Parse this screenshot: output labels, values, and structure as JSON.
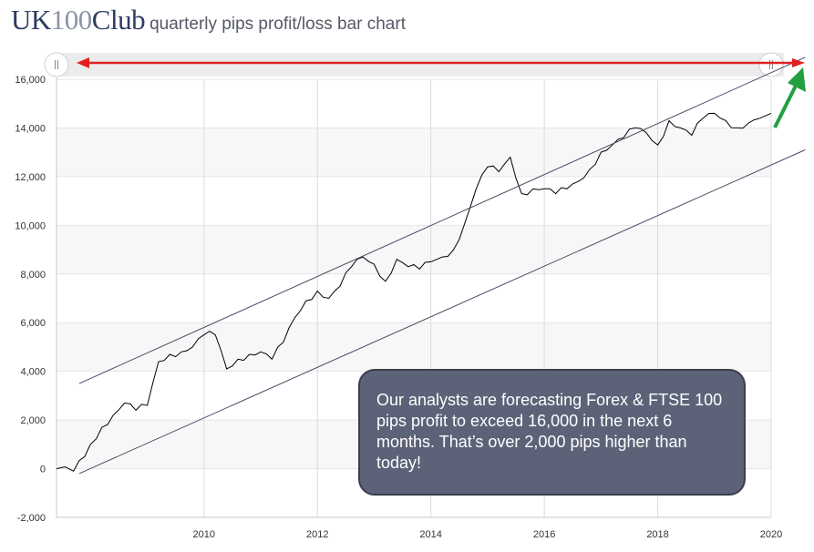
{
  "header": {
    "logo_part1": "UK",
    "logo_part2": "100",
    "logo_part3": "Club",
    "subtitle": "quarterly pips profit/loss bar chart"
  },
  "callout": {
    "text": "Our analysts are forecasting Forex & FTSE 100 pips profit to exceed 16,000 in the next 6 months. That’s over 2,000 pips higher than today!"
  },
  "navigator": {
    "left_handle_icon": "drag-handle-icon",
    "right_handle_icon": "drag-handle-icon"
  },
  "colors": {
    "line": "#000000",
    "channel": "#4a4a6a",
    "red_arrow": "#e02020",
    "green_arrow": "#22a040",
    "band": "#f7f7f7",
    "callout_bg": "#5c6378"
  },
  "chart_data": {
    "type": "line",
    "title": "",
    "xlabel": "",
    "ylabel": "",
    "xlim": [
      2007.4,
      2020.0
    ],
    "ylim": [
      -2000,
      16000
    ],
    "x_ticks": [
      2010,
      2012,
      2014,
      2016,
      2018,
      2020
    ],
    "x_tick_labels": [
      "2010",
      "2012",
      "2014",
      "2016",
      "2018",
      "2020"
    ],
    "y_ticks": [
      -2000,
      0,
      2000,
      4000,
      6000,
      8000,
      10000,
      12000,
      14000,
      16000
    ],
    "y_tick_labels": [
      "-2,000",
      "0",
      "2,000",
      "4,000",
      "6,000",
      "8,000",
      "10,000",
      "12,000",
      "14,000",
      "16,000"
    ],
    "grid": true,
    "series": [
      {
        "x": [
          2007.4,
          2007.7,
          2007.9,
          2008.0,
          2008.2,
          2008.4,
          2008.6,
          2008.8,
          2009.0,
          2009.2,
          2009.4,
          2009.6,
          2009.8,
          2010.0,
          2010.2,
          2010.4,
          2010.6,
          2010.8,
          2011.0,
          2011.2,
          2011.4,
          2011.6,
          2011.8,
          2012.0,
          2012.2,
          2012.4,
          2012.6,
          2012.8,
          2013.0,
          2013.2,
          2013.4,
          2013.6,
          2013.8,
          2014.0,
          2014.2,
          2014.4,
          2014.6,
          2014.8,
          2015.0,
          2015.2,
          2015.4,
          2015.6,
          2015.8,
          2016.0,
          2016.2,
          2016.4,
          2016.6,
          2016.8,
          2017.0,
          2017.2,
          2017.4,
          2017.6,
          2017.8,
          2018.0,
          2018.2,
          2018.4,
          2018.6,
          2018.8,
          2019.0,
          2019.2,
          2019.4,
          2019.6,
          2019.8,
          2020.0
        ],
        "y": [
          0,
          -100,
          500,
          1000,
          1700,
          2200,
          2700,
          2400,
          2600,
          4400,
          4700,
          4800,
          5000,
          5500,
          5500,
          4100,
          4500,
          4700,
          4800,
          4500,
          5200,
          6200,
          6900,
          7300,
          7000,
          7500,
          8300,
          8700,
          8400,
          7700,
          8600,
          8300,
          8200,
          8500,
          8700,
          9000,
          10100,
          11500,
          12400,
          12200,
          12800,
          11300,
          11500,
          11500,
          11300,
          11500,
          11800,
          12300,
          13000,
          13300,
          13600,
          14000,
          13800,
          13300,
          14300,
          14000,
          13700,
          14400,
          14600,
          14300,
          14000,
          14200,
          14400,
          14600
        ]
      }
    ],
    "annotations": [
      {
        "type": "channel-line",
        "from": [
          2007.8,
          3500
        ],
        "to": [
          2020.6,
          16900
        ]
      },
      {
        "type": "channel-line",
        "from": [
          2007.8,
          -200
        ],
        "to": [
          2020.6,
          13100
        ]
      }
    ]
  }
}
